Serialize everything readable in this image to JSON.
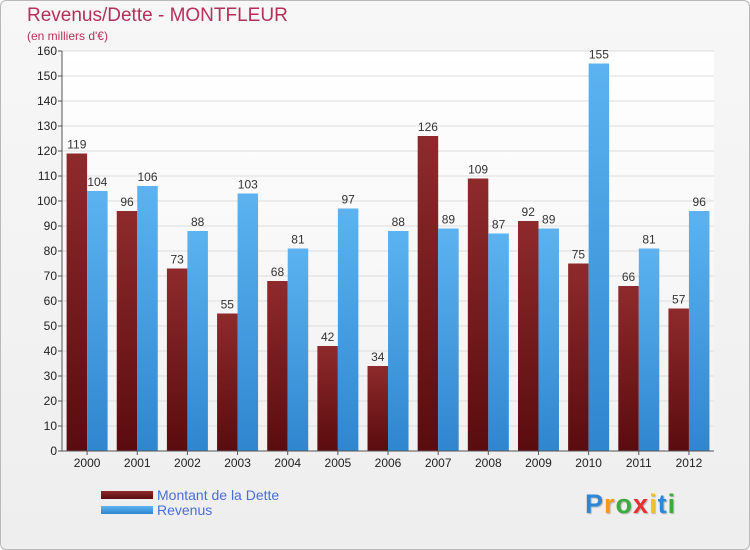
{
  "chart": {
    "title": "Revenus/Dette - MONTFLEUR",
    "subtitle": "(en milliers d'€)"
  },
  "legend": {
    "dette_label": "Montant de la Dette",
    "revenus_label": "Revenus"
  },
  "logo": {
    "text": "Proxiti",
    "letters": [
      {
        "ch": "P",
        "color": "#2e86d6"
      },
      {
        "ch": "r",
        "color": "#f39a1e"
      },
      {
        "ch": "o",
        "color": "#3caa3c"
      },
      {
        "ch": "x",
        "color": "#e8302e"
      },
      {
        "ch": "i",
        "color": "#f3c21e"
      },
      {
        "ch": "t",
        "color": "#2e86d6"
      },
      {
        "ch": "i",
        "color": "#3caa3c"
      }
    ]
  },
  "colors": {
    "dette": "#7a1a1c",
    "revenus": "#3d9be3",
    "title": "#b5305a"
  },
  "chart_data": {
    "type": "bar",
    "title": "Revenus/Dette - MONTFLEUR",
    "subtitle": "(en milliers d'€)",
    "categories": [
      "2000",
      "2001",
      "2002",
      "2003",
      "2004",
      "2005",
      "2006",
      "2007",
      "2008",
      "2009",
      "2010",
      "2011",
      "2012"
    ],
    "series": [
      {
        "name": "Montant de la Dette",
        "values": [
          119,
          96,
          73,
          55,
          68,
          42,
          34,
          126,
          109,
          92,
          75,
          66,
          57
        ]
      },
      {
        "name": "Revenus",
        "values": [
          104,
          106,
          88,
          103,
          81,
          97,
          88,
          89,
          87,
          89,
          155,
          81,
          96
        ]
      }
    ],
    "ylim": [
      0,
      160
    ],
    "yticks": [
      0,
      10,
      20,
      30,
      40,
      50,
      60,
      70,
      80,
      90,
      100,
      110,
      120,
      130,
      140,
      150,
      160
    ],
    "grid": true,
    "legend_position": "bottom-left"
  }
}
